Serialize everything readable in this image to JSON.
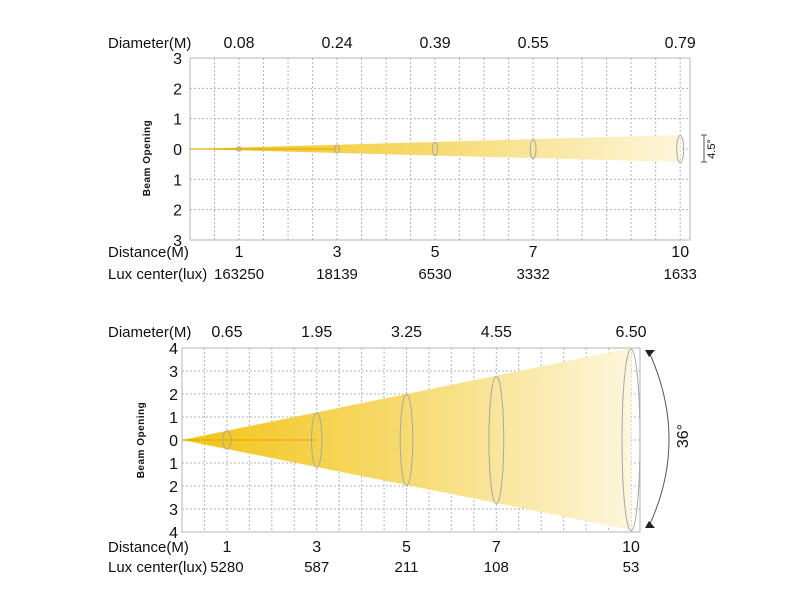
{
  "colors": {
    "beam_start": "#f3c415",
    "beam_mid": "#f6d867",
    "beam_end": "#fdf6dc",
    "beam_core": "#e0a500",
    "grid": "#b5b5b5",
    "ring": "#a8a8a8",
    "text": "#111111"
  },
  "chart_data": [
    {
      "type": "beam-diagram",
      "ylabel": "Beam Opening",
      "beam_angle_label": "4.5°",
      "diameter_label": "Diameter(M)",
      "distance_label": "Distance(M)",
      "lux_label": "Lux center(lux)",
      "diameters": [
        "0.08",
        "0.24",
        "0.39",
        "0.55",
        "0.79"
      ],
      "distances": [
        1,
        3,
        5,
        7,
        10
      ],
      "distance_labels": [
        "1",
        "3",
        "5",
        "7",
        "10"
      ],
      "lux": [
        "163250",
        "18139",
        "6530",
        "3332",
        "1633"
      ],
      "y_ticks": [
        "3",
        "2",
        "1",
        "0",
        "1",
        "2",
        "3"
      ],
      "ylim": [
        -3,
        3
      ],
      "xlim": [
        0,
        10.2
      ]
    },
    {
      "type": "beam-diagram",
      "ylabel": "Beam Opening",
      "beam_angle_label": "36°",
      "diameter_label": "Diameter(M)",
      "distance_label": "Distance(M)",
      "lux_label": "Lux center(lux)",
      "diameters": [
        "0.65",
        "1.95",
        "3.25",
        "4.55",
        "6.50"
      ],
      "distances": [
        1,
        3,
        5,
        7,
        10
      ],
      "distance_labels": [
        "1",
        "3",
        "5",
        "7",
        "10"
      ],
      "lux": [
        "5280",
        "587",
        "211",
        "108",
        "53"
      ],
      "y_ticks": [
        "4",
        "3",
        "2",
        "1",
        "0",
        "1",
        "2",
        "3",
        "4"
      ],
      "ylim": [
        -4,
        4
      ],
      "xlim": [
        0,
        10.2
      ]
    }
  ]
}
